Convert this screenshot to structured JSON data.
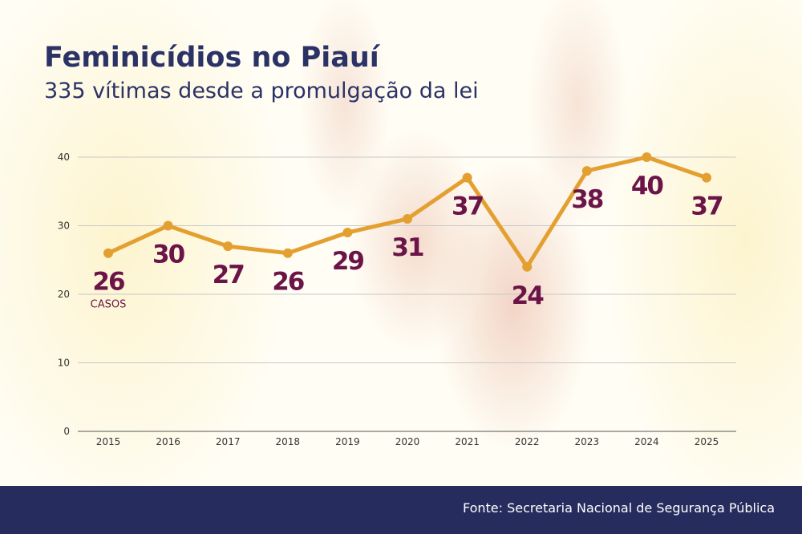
{
  "title": "Feminicídios no Piauí",
  "subtitle": "335 vítimas desde a promulgação da lei",
  "source": "Fonte: Secretaria Nacional de Segurança Pública",
  "chart_data": {
    "type": "line",
    "categories": [
      "2015",
      "2016",
      "2017",
      "2018",
      "2019",
      "2020",
      "2021",
      "2022",
      "2023",
      "2024",
      "2025"
    ],
    "values": [
      26,
      30,
      27,
      26,
      29,
      31,
      37,
      24,
      38,
      40,
      37
    ],
    "ylim": [
      0,
      40
    ],
    "yticks": [
      0,
      10,
      20,
      30,
      40
    ],
    "grid": true,
    "unit_label": "CASOS",
    "line_color": "#e3a030",
    "label_color": "#6b1448"
  }
}
